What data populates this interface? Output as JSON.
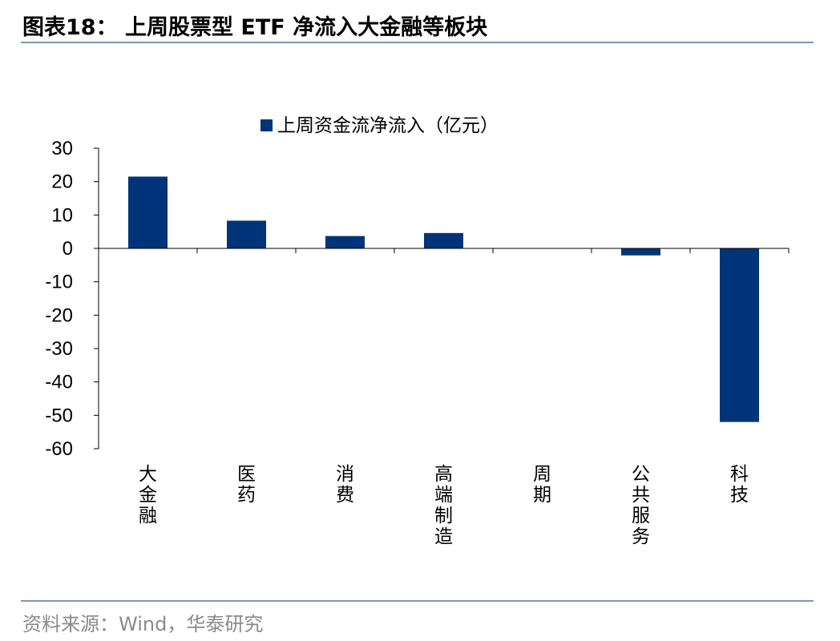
{
  "header": {
    "title": "图表18：  上周股票型 ETF 净流入大金融等板块"
  },
  "footer": {
    "source": "资料来源：Wind，华泰研究"
  },
  "chart_data": {
    "type": "bar",
    "categories": [
      "大金融",
      "医药",
      "消费",
      "高端制造",
      "周期",
      "公共服务",
      "科技"
    ],
    "series": [
      {
        "name": "上周资金流净流入（亿元）",
        "values": [
          21.5,
          8.3,
          3.7,
          4.6,
          0.1,
          -2.1,
          -52.0
        ],
        "color": "#003478"
      }
    ],
    "ylim": [
      -60,
      30
    ],
    "yticks": [
      30,
      20,
      10,
      0,
      -10,
      -20,
      -30,
      -40,
      -50,
      -60
    ],
    "legend_position": "top-center",
    "grid": false
  }
}
